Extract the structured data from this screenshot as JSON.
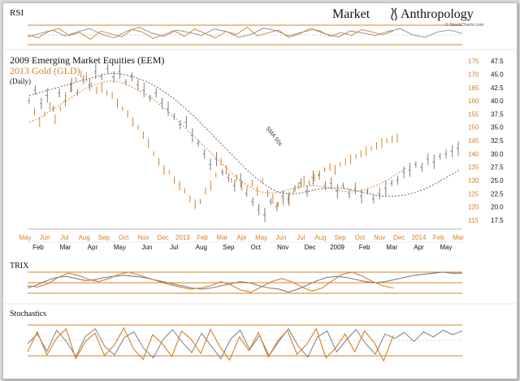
{
  "brand": {
    "word1": "Market",
    "word2": "Anthropology",
    "credit": "© StockCharts.com"
  },
  "colors": {
    "eem": "#7d7d7d",
    "gld": "#d4802a",
    "band": "#d4802a",
    "text": "#111111"
  },
  "chart_data": [
    {
      "type": "line",
      "title": "RSI",
      "xlabel": "",
      "ylabel": "",
      "series": [
        {
          "values": [
            46,
            53,
            60,
            48,
            56,
            63,
            51,
            44,
            58,
            66,
            54,
            47,
            60,
            55,
            49,
            62,
            57,
            45,
            51,
            64,
            59,
            48,
            55,
            61,
            52,
            46,
            58,
            54,
            49,
            57,
            63,
            50,
            45,
            56,
            60,
            53
          ]
        },
        {
          "values": [
            50,
            44,
            57,
            63,
            49,
            55,
            41,
            58,
            52,
            46,
            61,
            56,
            43,
            50,
            59,
            47,
            62,
            53,
            44,
            57,
            51,
            66,
            48,
            54,
            60,
            45,
            52,
            63,
            58,
            47,
            55,
            49,
            61,
            56,
            50,
            58
          ]
        }
      ]
    },
    {
      "type": "line",
      "title": "2009 Emerging Market Equities (EEM)",
      "subtitle": "2013 Gold (GLD)",
      "note": "(Daily)",
      "annotation": "SMA 50s",
      "x_top_labels": [
        "May",
        "Jun",
        "Jul",
        "Aug",
        "Sep",
        "Oct",
        "Nov",
        "Dec",
        "2013",
        "Feb",
        "Mar",
        "Apr",
        "May",
        "Jun",
        "Jul",
        "Aug",
        "Sep",
        "Oct",
        "Nov",
        "Dec",
        "2014",
        "Feb",
        "Mar"
      ],
      "x_bottom_labels": [
        "Feb",
        "Mar",
        "Apr",
        "May",
        "Jun",
        "Jul",
        "Aug",
        "Sep",
        "Oct",
        "Nov",
        "Dec",
        "2009",
        "Feb",
        "Mar",
        "Apr",
        "May"
      ],
      "right_axis_gld": {
        "ticks": [
          175,
          170,
          165,
          160,
          155,
          150,
          145,
          140,
          135,
          130,
          125,
          120,
          115
        ],
        "ylim": [
          114,
          176
        ]
      },
      "right_axis_eem": {
        "ticks": [
          "47.5",
          "45.0",
          "42.5",
          "40.0",
          "37.5",
          "35.0",
          "32.5",
          "30.0",
          "27.5",
          "25.0",
          "22.5",
          "20.0",
          "17.5"
        ],
        "ylim": [
          16.9,
          48.1
        ]
      },
      "series": [
        {
          "name": "Emerging Market Equities (EEM)",
          "values": [
            40,
            42,
            39.5,
            41,
            38.5,
            41.5,
            40,
            43,
            41.5,
            44,
            43,
            45.5,
            44.5,
            46,
            44.5,
            45.5,
            43.5,
            44.5,
            43,
            42,
            40.5,
            41.5,
            39.5,
            38.5,
            37,
            35.5,
            36,
            33.5,
            32,
            30,
            28,
            29,
            26.5,
            25.5,
            24,
            25,
            22.5,
            21,
            19.5,
            18.5,
            21,
            20,
            22,
            21.5,
            23.5,
            24.5,
            23,
            25.5,
            26,
            24,
            24.5,
            23,
            24,
            22.5,
            23.5,
            22,
            23,
            21.5,
            22.5,
            23.5,
            24.5,
            25,
            26.5,
            27,
            28,
            27.5,
            29,
            28.5,
            29.5,
            30,
            30.5,
            31
          ]
        },
        {
          "name": "Gold (GLD)",
          "values": [
            160,
            156,
            152,
            155,
            158,
            153,
            157,
            162,
            165,
            168,
            170,
            169,
            166,
            164,
            165,
            163,
            162,
            159,
            157,
            155,
            152,
            150,
            147,
            144,
            140,
            137,
            134,
            133,
            130,
            128,
            126,
            123,
            121,
            122,
            126,
            128,
            132,
            137,
            134,
            130,
            131,
            128,
            127,
            129,
            126,
            130,
            125,
            123,
            121,
            122,
            123,
            126,
            128,
            130,
            129,
            131,
            132,
            134,
            135,
            134,
            136,
            137,
            138,
            139,
            140,
            141,
            142,
            143,
            144,
            145,
            145.5,
            146
          ]
        },
        {
          "name": "SMA 50 (EEM)",
          "values": [
            41,
            41.5,
            42,
            42.5,
            43,
            43.5,
            44,
            44.5,
            45,
            45.2,
            45,
            44.6,
            44,
            43.2,
            42.2,
            41,
            39.6,
            38,
            36.4,
            34.6,
            32.8,
            31,
            29.2,
            27.4,
            25.8,
            24.4,
            23.2,
            22.6,
            22.4,
            22.6,
            23,
            23.4,
            23.6,
            23.6,
            23.4,
            23,
            22.6,
            22.2,
            22,
            22,
            22.2,
            22.6,
            23.2,
            24,
            25,
            26,
            27
          ]
        },
        {
          "name": "SMA 50 (GLD)",
          "values": [
            152,
            153,
            155,
            157,
            159,
            161,
            163,
            165,
            166,
            167,
            167.5,
            167,
            166,
            164.5,
            163,
            161,
            158.5,
            156,
            153,
            150,
            147,
            144,
            141,
            138,
            135,
            132,
            129.5,
            127.5,
            126,
            125.3,
            125.2,
            125.8,
            126.8,
            127.6,
            127.9,
            128,
            127.5,
            126.8,
            126.1,
            125.7,
            125.8,
            126.5,
            127.5,
            128.8,
            130.5,
            132.5,
            134.5
          ]
        }
      ]
    },
    {
      "type": "line",
      "title": "TRIX",
      "xlabel": "",
      "ylabel": "",
      "series": [
        {
          "values": [
            -0.5,
            -0.2,
            0.2,
            0.5,
            0.6,
            0.4,
            0.2,
            0.3,
            0.5,
            0.6,
            0.7,
            0.6,
            0.5,
            0.3,
            0.1,
            -0.1,
            -0.3,
            -0.5,
            -0.6,
            -0.5,
            -0.3,
            -0.1,
            0.1,
            0.0,
            -0.3,
            -0.5,
            -0.6,
            -0.9,
            -0.6,
            -0.2,
            0.2,
            0.5,
            0.6,
            0.5,
            0.3,
            0.1,
            0.0,
            0.1,
            0.3,
            0.5,
            0.7,
            0.8,
            0.9,
            1.0,
            0.9,
            0.9
          ]
        },
        {
          "values": [
            -0.3,
            -0.4,
            -0.1,
            0.5,
            0.9,
            0.7,
            0.3,
            0.1,
            0.4,
            0.8,
            1.0,
            0.7,
            0.4,
            0.1,
            -0.2,
            -0.4,
            -0.6,
            -0.5,
            -0.3,
            0.1,
            -0.2,
            -0.7,
            -0.9,
            -0.4,
            0.1,
            0.4,
            0.1,
            -0.4,
            -0.8,
            -0.5,
            0.2,
            0.8,
            1.0,
            0.6,
            0.1,
            -0.3,
            -0.5
          ]
        }
      ]
    },
    {
      "type": "line",
      "title": "Stochastics",
      "xlabel": "",
      "ylabel": "",
      "series": [
        {
          "values": [
            52,
            78,
            32,
            88,
            58,
            18,
            72,
            92,
            44,
            22,
            68,
            84,
            40,
            14,
            62,
            90,
            56,
            28,
            80,
            46,
            12,
            64,
            88,
            36,
            74,
            20,
            58,
            92,
            46,
            16,
            70,
            86,
            30,
            62,
            90,
            52,
            24,
            78,
            66,
            82,
            58,
            84,
            70,
            88,
            76,
            86
          ]
        },
        {
          "values": [
            30,
            84,
            22,
            66,
            92,
            12,
            58,
            80,
            20,
            48,
            94,
            38,
            10,
            76,
            52,
            18,
            86,
            64,
            26,
            90,
            44,
            8,
            70,
            34,
            82,
            16,
            60,
            88,
            24,
            50,
            92,
            14,
            40,
            78,
            30,
            86,
            56,
            6,
            74
          ]
        }
      ]
    }
  ]
}
